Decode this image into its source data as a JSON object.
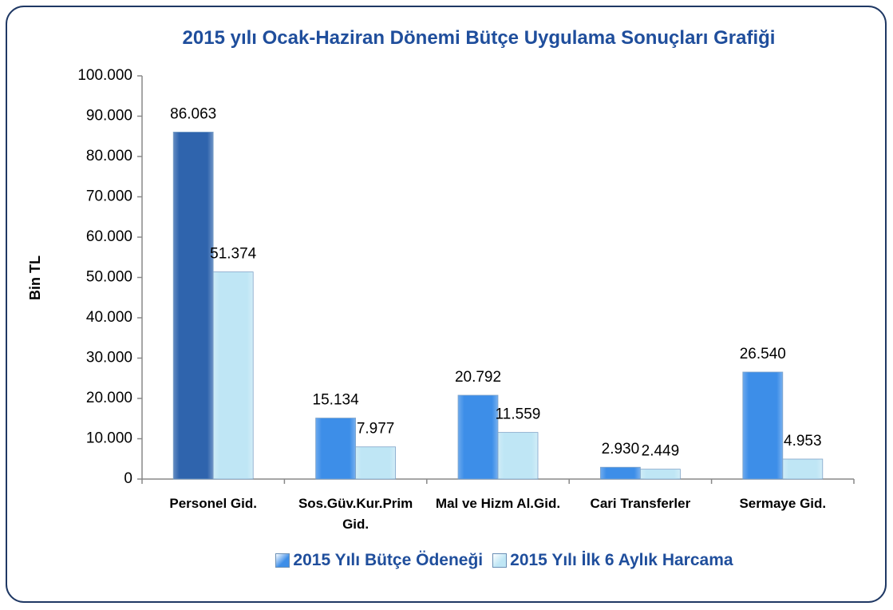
{
  "chart_data": {
    "type": "bar",
    "title": "2015 yılı Ocak-Haziran Dönemi Bütçe Uygulama Sonuçları Grafiği",
    "y_label": "Bin TL",
    "categories": [
      "Personel Gid.",
      "Sos.Güv.Kur.Prim Gid.",
      "Mal ve Hizm Al.Gid.",
      "Cari Transferler",
      "Sermaye Gid."
    ],
    "series": [
      {
        "name": "2015 Yılı Bütçe Ödeneği",
        "color": "#3d8ee8",
        "point_colors": [
          "#2f64ad",
          "#3d8ee8",
          "#3d8ee8",
          "#3d8ee8",
          "#3d8ee8"
        ],
        "values": [
          86063,
          15134,
          20792,
          2930,
          26540
        ],
        "value_labels": [
          "86.063",
          "15.134",
          "20.792",
          "2.930",
          "26.540"
        ]
      },
      {
        "name": "2015 Yılı İlk 6 Aylık Harcama",
        "color": "#bfe6f5",
        "values": [
          51374,
          7977,
          11559,
          2449,
          4953
        ],
        "value_labels": [
          "51.374",
          "7.977",
          "11.559",
          "2.449",
          "4.953"
        ]
      }
    ],
    "ylim": [
      0,
      100000
    ],
    "yticks": [
      0,
      {
        "value": 10000,
        "label": "10.000"
      },
      {
        "value": 20000,
        "label": "20.000"
      },
      {
        "value": 30000,
        "label": "30.000"
      },
      {
        "value": 40000,
        "label": "40.000"
      },
      {
        "value": 50000,
        "label": "50.000"
      },
      {
        "value": 60000,
        "label": "60.000"
      },
      {
        "value": 70000,
        "label": "70.000"
      },
      {
        "value": 80000,
        "label": "80.000"
      },
      {
        "value": 90000,
        "label": "90.000"
      },
      {
        "value": 100000,
        "label": "100.000"
      }
    ],
    "grid": false,
    "legend": "bottom"
  }
}
